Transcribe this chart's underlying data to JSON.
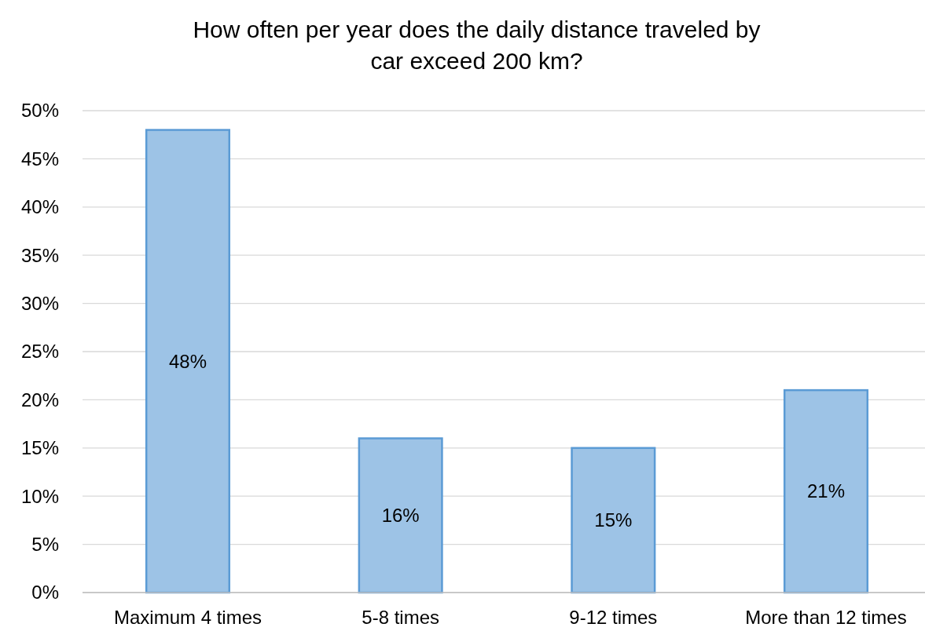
{
  "chart_data": {
    "type": "bar",
    "title": "How often per year does the daily distance traveled by car exceed 200 km?",
    "categories": [
      "Maximum 4 times",
      "5-8 times",
      "9-12 times",
      "More than 12 times"
    ],
    "values": [
      48,
      16,
      15,
      21
    ],
    "value_labels": [
      "48%",
      "16%",
      "15%",
      "21%"
    ],
    "color": "#9dc3e6",
    "ylim": [
      0,
      50
    ],
    "yticks": [
      {
        "value": 0,
        "label": "0%"
      },
      {
        "value": 5,
        "label": "5%"
      },
      {
        "value": 10,
        "label": "10%"
      },
      {
        "value": 15,
        "label": "15%"
      },
      {
        "value": 20,
        "label": "20%"
      },
      {
        "value": 25,
        "label": "25%"
      },
      {
        "value": 30,
        "label": "30%"
      },
      {
        "value": 35,
        "label": "35%"
      },
      {
        "value": 40,
        "label": "40%"
      },
      {
        "value": 45,
        "label": "45%"
      },
      {
        "value": 50,
        "label": "50%"
      }
    ],
    "grid": "y"
  }
}
